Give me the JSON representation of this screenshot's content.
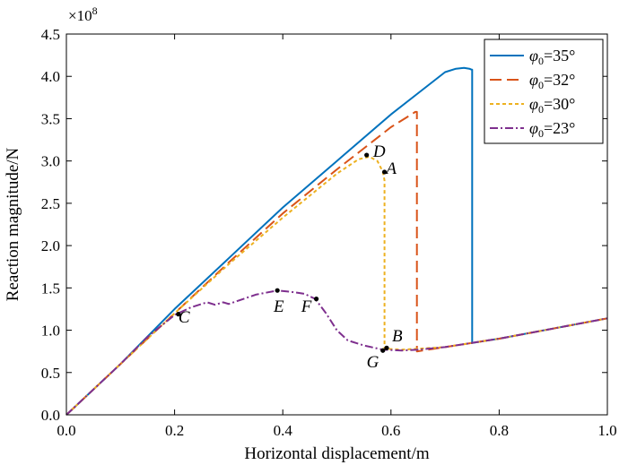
{
  "chart_data": {
    "type": "line",
    "xlabel": "Horizontal displacement/m",
    "ylabel": "Reaction magnitude/N",
    "y_multiplier": "×10",
    "y_exponent": "8",
    "xlim": [
      0,
      1.0
    ],
    "ylim": [
      0,
      4.5
    ],
    "x_ticks": [
      0,
      0.2,
      0.4,
      0.6,
      0.8,
      1.0
    ],
    "x_tick_labels": [
      "0.0",
      "0.2",
      "0.4",
      "0.6",
      "0.8",
      "1.0"
    ],
    "y_ticks": [
      0,
      0.5,
      1.0,
      1.5,
      2.0,
      2.5,
      3.0,
      3.5,
      4.0,
      4.5
    ],
    "y_tick_labels": [
      "0.0",
      "0.5",
      "1.0",
      "1.5",
      "2.0",
      "2.5",
      "3.0",
      "3.5",
      "4.0",
      "4.5"
    ],
    "grid": false,
    "legend_position": "top-right",
    "series": [
      {
        "name": "φ0=35°",
        "legend_sym": "φ",
        "legend_sub": "0",
        "legend_val": "=35°",
        "color": "#0072BD",
        "dash": "solid",
        "x": [
          0,
          0.1,
          0.2,
          0.3,
          0.4,
          0.5,
          0.6,
          0.65,
          0.7,
          0.72,
          0.735,
          0.745,
          0.749,
          0.75,
          0.75,
          0.8,
          0.9,
          1.0
        ],
        "y": [
          0,
          0.6,
          1.25,
          1.85,
          2.45,
          3.0,
          3.55,
          3.8,
          4.05,
          4.09,
          4.1,
          4.09,
          4.08,
          4.08,
          0.85,
          0.9,
          1.02,
          1.14
        ]
      },
      {
        "name": "φ0=32°",
        "legend_sym": "φ",
        "legend_sub": "0",
        "legend_val": "=32°",
        "color": "#D95319",
        "dash": "long",
        "x": [
          0,
          0.1,
          0.2,
          0.3,
          0.4,
          0.5,
          0.55,
          0.6,
          0.63,
          0.645,
          0.648,
          0.648,
          0.7,
          0.8,
          0.9,
          1.0
        ],
        "y": [
          0,
          0.6,
          1.2,
          1.8,
          2.38,
          2.9,
          3.15,
          3.4,
          3.52,
          3.58,
          3.58,
          0.75,
          0.8,
          0.9,
          1.02,
          1.14
        ]
      },
      {
        "name": "φ0=30°",
        "legend_sym": "φ",
        "legend_sub": "0",
        "legend_val": "=30°",
        "color": "#EDB120",
        "dash": "short",
        "x": [
          0,
          0.1,
          0.2,
          0.3,
          0.4,
          0.5,
          0.54,
          0.56,
          0.575,
          0.585,
          0.588,
          0.588,
          0.62,
          0.7,
          0.8,
          0.9,
          1.0
        ],
        "y": [
          0,
          0.6,
          1.2,
          1.78,
          2.33,
          2.85,
          3.02,
          3.05,
          3.0,
          2.87,
          2.77,
          0.78,
          0.77,
          0.8,
          0.9,
          1.02,
          1.14
        ]
      },
      {
        "name": "φ0=23°",
        "legend_sym": "φ",
        "legend_sub": "0",
        "legend_val": "=23°",
        "color": "#7E2F8E",
        "dash": "dashdot",
        "x": [
          0,
          0.1,
          0.15,
          0.2,
          0.23,
          0.26,
          0.275,
          0.29,
          0.3,
          0.35,
          0.39,
          0.42,
          0.44,
          0.46,
          0.48,
          0.5,
          0.52,
          0.55,
          0.585,
          0.62,
          0.65,
          0.7,
          0.8,
          0.9,
          1.0
        ],
        "y": [
          0,
          0.6,
          0.92,
          1.18,
          1.27,
          1.33,
          1.3,
          1.33,
          1.31,
          1.42,
          1.47,
          1.45,
          1.43,
          1.37,
          1.2,
          1.0,
          0.88,
          0.82,
          0.77,
          0.76,
          0.77,
          0.8,
          0.9,
          1.02,
          1.14
        ]
      }
    ],
    "annotations": [
      {
        "label": "A",
        "x": 0.588,
        "y": 2.87,
        "dx": 0.003,
        "dy": -0.02
      },
      {
        "label": "B",
        "x": 0.592,
        "y": 0.79,
        "dx": 0.01,
        "dy": 0.08
      },
      {
        "label": "C",
        "x": 0.207,
        "y": 1.19,
        "dx": 0.0,
        "dy": -0.1
      },
      {
        "label": "D",
        "x": 0.555,
        "y": 3.07,
        "dx": 0.012,
        "dy": -0.02
      },
      {
        "label": "E",
        "x": 0.39,
        "y": 1.47,
        "dx": -0.007,
        "dy": -0.25
      },
      {
        "label": "F",
        "x": 0.462,
        "y": 1.37,
        "dx": -0.028,
        "dy": -0.15
      },
      {
        "label": "G",
        "x": 0.585,
        "y": 0.76,
        "dx": -0.03,
        "dy": -0.2
      }
    ]
  }
}
